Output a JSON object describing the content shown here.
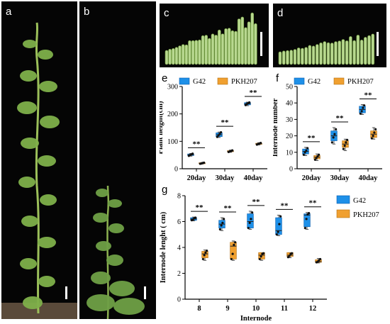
{
  "panels": {
    "a": {
      "label": "a"
    },
    "b": {
      "label": "b"
    },
    "c": {
      "label": "c"
    },
    "d": {
      "label": "d"
    },
    "e": {
      "label": "e"
    },
    "f": {
      "label": "f"
    },
    "g": {
      "label": "g"
    }
  },
  "colors": {
    "g42": "#1e90e8",
    "pkh207": "#f0a030",
    "g42_edge": "#0b5fb0",
    "pkh207_edge": "#b56e10"
  },
  "chart_data": [
    {
      "id": "e",
      "type": "box",
      "ylabel": "Plant height(cm)",
      "xlabel": "",
      "categories": [
        "20day",
        "30day",
        "40day"
      ],
      "ylim": [
        0,
        300
      ],
      "yticks": [
        0,
        100,
        200,
        300
      ],
      "legend": [
        "G42",
        "PKH207"
      ],
      "significance": [
        "**",
        "**",
        "**"
      ],
      "series": [
        {
          "name": "G42",
          "boxes": [
            {
              "min": 46,
              "q1": 48,
              "median": 51,
              "q3": 54,
              "max": 56,
              "points": [
                47,
                50,
                52,
                55
              ]
            },
            {
              "min": 114,
              "q1": 117,
              "median": 124,
              "q3": 131,
              "max": 134,
              "points": [
                116,
                122,
                127,
                133
              ]
            },
            {
              "min": 230,
              "q1": 233,
              "median": 237,
              "q3": 241,
              "max": 243,
              "points": [
                232,
                236,
                239,
                242
              ]
            }
          ]
        },
        {
          "name": "PKH207",
          "boxes": [
            {
              "min": 17,
              "q1": 18,
              "median": 20,
              "q3": 22,
              "max": 23,
              "points": [
                18,
                19,
                21,
                22
              ]
            },
            {
              "min": 60,
              "q1": 62,
              "median": 64,
              "q3": 66,
              "max": 68,
              "points": [
                61,
                63,
                65,
                67
              ]
            },
            {
              "min": 87,
              "q1": 89,
              "median": 91,
              "q3": 93,
              "max": 95,
              "points": [
                88,
                90,
                92,
                94
              ]
            }
          ]
        }
      ]
    },
    {
      "id": "f",
      "type": "box",
      "ylabel": "Internode number",
      "xlabel": "",
      "categories": [
        "20day",
        "30day",
        "40day"
      ],
      "ylim": [
        0,
        50
      ],
      "yticks": [
        0,
        10,
        20,
        30,
        40,
        50
      ],
      "legend": [
        "G42",
        "PKH207"
      ],
      "significance": [
        "**",
        "**",
        "**"
      ],
      "series": [
        {
          "name": "G42",
          "boxes": [
            {
              "min": 8,
              "q1": 9,
              "median": 10.5,
              "q3": 12,
              "max": 13,
              "points": [
                8.5,
                10,
                11,
                12.5
              ]
            },
            {
              "min": 15,
              "q1": 17,
              "median": 20,
              "q3": 23,
              "max": 25,
              "points": [
                16,
                19,
                21,
                24
              ]
            },
            {
              "min": 33,
              "q1": 34,
              "median": 36,
              "q3": 38,
              "max": 39,
              "points": [
                33.5,
                35,
                37,
                38.5
              ]
            }
          ]
        },
        {
          "name": "PKH207",
          "boxes": [
            {
              "min": 5,
              "q1": 6,
              "median": 7,
              "q3": 8,
              "max": 9,
              "points": [
                5.5,
                6.5,
                7.5,
                8.5
              ]
            },
            {
              "min": 11,
              "q1": 13,
              "median": 15,
              "q3": 17,
              "max": 18,
              "points": [
                12,
                14,
                16,
                17.5
              ]
            },
            {
              "min": 18,
              "q1": 19,
              "median": 21,
              "q3": 23,
              "max": 25,
              "points": [
                18.5,
                20,
                22,
                24
              ]
            }
          ]
        }
      ]
    },
    {
      "id": "g",
      "type": "box",
      "ylabel": "Internode lenght ( cm)",
      "xlabel": "Internode",
      "categories": [
        "8",
        "9",
        "10",
        "11",
        "12"
      ],
      "ylim": [
        0,
        8
      ],
      "yticks": [
        0,
        2,
        4,
        6,
        8
      ],
      "legend": [
        "G42",
        "PKH207"
      ],
      "significance": [
        "**",
        "**",
        "**",
        "**",
        "**"
      ],
      "series": [
        {
          "name": "G42",
          "boxes": [
            {
              "min": 6.05,
              "q1": 6.1,
              "median": 6.2,
              "q3": 6.3,
              "max": 6.35,
              "points": [
                6.1,
                6.15,
                6.25,
                6.3
              ]
            },
            {
              "min": 5.3,
              "q1": 5.5,
              "median": 5.8,
              "q3": 6.1,
              "max": 6.3,
              "points": [
                5.4,
                5.7,
                5.9,
                6.2
              ]
            },
            {
              "min": 5.4,
              "q1": 5.5,
              "median": 6.0,
              "q3": 6.6,
              "max": 6.8,
              "points": [
                5.5,
                5.9,
                6.2,
                6.7
              ]
            },
            {
              "min": 4.9,
              "q1": 5.0,
              "median": 5.3,
              "q3": 6.3,
              "max": 6.5,
              "points": [
                5.0,
                5.2,
                5.8,
                6.4
              ]
            },
            {
              "min": 5.4,
              "q1": 5.6,
              "median": 6.5,
              "q3": 6.6,
              "max": 6.7,
              "points": [
                5.5,
                6.2,
                6.55,
                6.65
              ]
            }
          ]
        },
        {
          "name": "PKH207",
          "boxes": [
            {
              "min": 3.0,
              "q1": 3.2,
              "median": 3.5,
              "q3": 3.7,
              "max": 3.8,
              "points": [
                3.1,
                3.4,
                3.6,
                3.75
              ]
            },
            {
              "min": 3.0,
              "q1": 3.1,
              "median": 4.1,
              "q3": 4.4,
              "max": 4.5,
              "points": [
                3.1,
                3.5,
                4.2,
                4.4
              ]
            },
            {
              "min": 3.0,
              "q1": 3.1,
              "median": 3.4,
              "q3": 3.6,
              "max": 3.6,
              "points": [
                3.1,
                3.3,
                3.5,
                3.55
              ]
            },
            {
              "min": 3.2,
              "q1": 3.3,
              "median": 3.4,
              "q3": 3.6,
              "max": 3.6,
              "points": [
                3.25,
                3.35,
                3.5,
                3.55
              ]
            },
            {
              "min": 2.8,
              "q1": 2.85,
              "median": 2.9,
              "q3": 3.05,
              "max": 3.15,
              "points": [
                2.85,
                2.9,
                3.0,
                3.1
              ]
            }
          ]
        }
      ]
    }
  ]
}
